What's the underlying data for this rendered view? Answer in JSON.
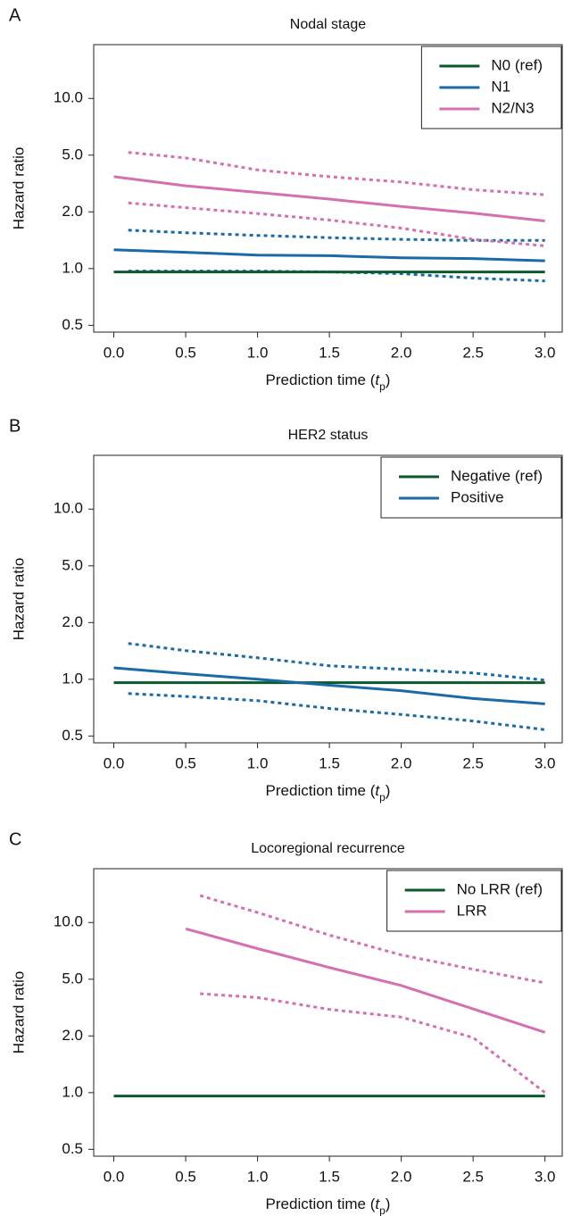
{
  "chart_data": [
    {
      "type": "line",
      "panel": "A",
      "title": "Nodal stage",
      "ylabel": "Hazard ratio",
      "xlabel": [
        "Prediction time (",
        "t",
        "p",
        ")"
      ],
      "yscale": "log",
      "grid": false,
      "legend": "upper right",
      "xlim": [
        -0.14,
        3.12
      ],
      "ylim": [
        0.46,
        19.3
      ],
      "xticks": [
        {
          "value": 0,
          "label": "0.0"
        },
        0.5,
        {
          "value": 1,
          "label": "1.0"
        },
        1.5,
        {
          "value": 2,
          "label": "2.0"
        },
        2.5,
        {
          "value": 3,
          "label": "3.0"
        }
      ],
      "yticks": [
        0.5,
        {
          "value": 1,
          "label": "1.0"
        },
        {
          "value": 2,
          "label": "2.0"
        },
        {
          "value": 5,
          "label": "5.0"
        },
        {
          "value": 10,
          "label": "10.0"
        }
      ],
      "series": [
        {
          "name": "N0 (ref)",
          "color": "#0b5a2c",
          "x": [
            0,
            3
          ],
          "values": [
            0.96,
            0.96
          ]
        },
        {
          "name": "N1",
          "color": "#1a6aa8",
          "x": [
            0,
            0.5,
            1,
            1.5,
            2,
            2.5,
            3
          ],
          "values": [
            1.26,
            1.22,
            1.18,
            1.17,
            1.14,
            1.13,
            1.1
          ],
          "ci_x": [
            0.1,
            0.5,
            1,
            1.5,
            2,
            2.5,
            3
          ],
          "lower": [
            0.97,
            0.97,
            0.97,
            0.96,
            0.94,
            0.89,
            0.86
          ],
          "upper": [
            1.6,
            1.55,
            1.5,
            1.46,
            1.43,
            1.41,
            1.41
          ]
        },
        {
          "name": "N2/N3",
          "color": "#d66fb0",
          "x": [
            0,
            0.5,
            1,
            1.5,
            2,
            2.5,
            3
          ],
          "values": [
            3.53,
            3.05,
            2.74,
            2.46,
            2.18,
            1.97,
            1.79
          ],
          "ci_x": [
            0.1,
            0.5,
            1,
            1.5,
            2,
            2.5,
            3
          ],
          "lower": [
            2.31,
            2.14,
            1.96,
            1.81,
            1.64,
            1.43,
            1.32
          ],
          "upper": [
            5.17,
            4.78,
            3.94,
            3.53,
            3.24,
            2.86,
            2.64
          ]
        }
      ]
    },
    {
      "type": "line",
      "panel": "B",
      "title": "HER2 status",
      "ylabel": "Hazard ratio",
      "xlabel": [
        "Prediction time (",
        "t",
        "p",
        ")"
      ],
      "yscale": "log",
      "grid": false,
      "legend": "upper right",
      "xlim": [
        -0.14,
        3.12
      ],
      "ylim": [
        0.46,
        19.3
      ],
      "xticks": [
        {
          "value": 0,
          "label": "0.0"
        },
        0.5,
        {
          "value": 1,
          "label": "1.0"
        },
        1.5,
        {
          "value": 2,
          "label": "2.0"
        },
        2.5,
        {
          "value": 3,
          "label": "3.0"
        }
      ],
      "yticks": [
        0.5,
        {
          "value": 1,
          "label": "1.0"
        },
        {
          "value": 2,
          "label": "2.0"
        },
        {
          "value": 5,
          "label": "5.0"
        },
        {
          "value": 10,
          "label": "10.0"
        }
      ],
      "series": [
        {
          "name": "Negative (ref)",
          "color": "#0b5a2c",
          "x": [
            0,
            3
          ],
          "values": [
            0.96,
            0.96
          ]
        },
        {
          "name": "Positive",
          "color": "#1a6aa8",
          "x": [
            0,
            0.5,
            1,
            1.5,
            2,
            2.5,
            3
          ],
          "values": [
            1.15,
            1.07,
            1.0,
            0.93,
            0.87,
            0.79,
            0.74
          ],
          "ci_x": [
            0.1,
            0.5,
            1,
            1.5,
            2,
            2.5,
            3
          ],
          "lower": [
            0.84,
            0.81,
            0.77,
            0.7,
            0.65,
            0.6,
            0.54
          ],
          "upper": [
            1.55,
            1.42,
            1.3,
            1.18,
            1.13,
            1.08,
            0.99
          ]
        }
      ]
    },
    {
      "type": "line",
      "panel": "C",
      "title": "Locoregional recurrence",
      "ylabel": "Hazard ratio",
      "xlabel": [
        "Prediction time (",
        "t",
        "p",
        ")"
      ],
      "yscale": "log",
      "grid": false,
      "legend": "upper right",
      "xlim": [
        -0.14,
        3.12
      ],
      "ylim": [
        0.46,
        19.3
      ],
      "xticks": [
        {
          "value": 0,
          "label": "0.0"
        },
        0.5,
        {
          "value": 1,
          "label": "1.0"
        },
        1.5,
        {
          "value": 2,
          "label": "2.0"
        },
        2.5,
        {
          "value": 3,
          "label": "3.0"
        }
      ],
      "yticks": [
        0.5,
        {
          "value": 1,
          "label": "1.0"
        },
        {
          "value": 2,
          "label": "2.0"
        },
        {
          "value": 5,
          "label": "5.0"
        },
        {
          "value": 10,
          "label": "10.0"
        }
      ],
      "series": [
        {
          "name": "No LRR (ref)",
          "color": "#0b5a2c",
          "x": [
            0,
            3
          ],
          "values": [
            0.96,
            0.96
          ]
        },
        {
          "name": "LRR",
          "color": "#d66fb0",
          "x": [
            0.5,
            1,
            1.5,
            2,
            2.5,
            3
          ],
          "values": [
            9.26,
            7.27,
            5.77,
            4.52,
            3.09,
            2.12
          ],
          "ci_x": [
            0.6,
            1,
            1.5,
            2,
            2.5,
            3
          ],
          "lower": [
            3.96,
            3.72,
            3.07,
            2.71,
            1.96,
            1.0
          ],
          "upper": [
            13.9,
            11.3,
            8.57,
            6.73,
            5.64,
            4.71
          ]
        }
      ]
    }
  ]
}
